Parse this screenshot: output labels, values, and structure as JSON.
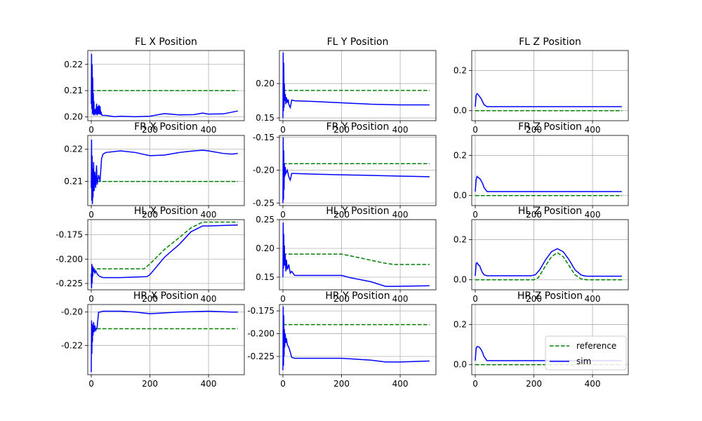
{
  "figure": {
    "background": "#ffffff"
  },
  "style": {
    "reference_color": "#008000",
    "sim_color": "#0000ff",
    "grid_color": "#b0b0b0"
  },
  "legend": {
    "placement": "lower-right",
    "panel": "HR Z Position",
    "entries": [
      "reference",
      "sim"
    ]
  },
  "chart_data": [
    {
      "type": "line",
      "title": "FL X Position",
      "xlim": [
        -12,
        522
      ],
      "ylim": [
        0.1985,
        0.2253
      ],
      "xticks": [
        "0",
        "200",
        "400"
      ],
      "yticks": [
        "0.20",
        "0.21",
        "0.22"
      ],
      "ytick_values": [
        0.2,
        0.21,
        0.22
      ],
      "grid": true,
      "series": [
        {
          "name": "reference",
          "style": "dashed",
          "x": [
            0,
            500
          ],
          "y": [
            0.21,
            0.21
          ]
        },
        {
          "name": "sim",
          "style": "solid",
          "x": [
            0,
            1,
            2,
            3,
            4,
            5,
            6,
            7,
            8,
            9,
            10,
            12,
            14,
            16,
            18,
            20,
            22,
            24,
            26,
            28,
            30,
            32,
            34,
            36,
            40,
            50,
            80,
            100,
            150,
            200,
            250,
            300,
            350,
            380,
            400,
            450,
            500
          ],
          "y": [
            0.205,
            0.224,
            0.203,
            0.22,
            0.201,
            0.215,
            0.2015,
            0.209,
            0.2005,
            0.206,
            0.2015,
            0.201,
            0.203,
            0.201,
            0.205,
            0.2005,
            0.204,
            0.201,
            0.2045,
            0.201,
            0.204,
            0.2008,
            0.2015,
            0.2006,
            0.2005,
            0.2005,
            0.2,
            0.2002,
            0.2,
            0.2002,
            0.2012,
            0.2007,
            0.2008,
            0.2014,
            0.201,
            0.2011,
            0.2022
          ]
        }
      ]
    },
    {
      "type": "line",
      "title": "FL Y Position",
      "xlim": [
        -12,
        522
      ],
      "ylim": [
        0.146,
        0.248
      ],
      "xticks": [
        "0",
        "200",
        "400"
      ],
      "yticks": [
        "0.15",
        "0.20"
      ],
      "ytick_values": [
        0.15,
        0.2
      ],
      "grid": true,
      "series": [
        {
          "name": "reference",
          "style": "dashed",
          "x": [
            0,
            500
          ],
          "y": [
            0.19,
            0.19
          ]
        },
        {
          "name": "sim",
          "style": "solid",
          "x": [
            0,
            1,
            2,
            3,
            4,
            5,
            6,
            8,
            10,
            12,
            15,
            18,
            20,
            25,
            30,
            40,
            100,
            200,
            300,
            400,
            500
          ],
          "y": [
            0.15,
            0.245,
            0.16,
            0.23,
            0.165,
            0.2,
            0.175,
            0.185,
            0.17,
            0.18,
            0.172,
            0.177,
            0.17,
            0.165,
            0.176,
            0.175,
            0.174,
            0.172,
            0.17,
            0.169,
            0.169
          ]
        }
      ]
    },
    {
      "type": "line",
      "title": "FL Z Position",
      "xlim": [
        -12,
        522
      ],
      "ylim": [
        -0.05,
        0.3
      ],
      "xticks": [
        "0",
        "200",
        "400"
      ],
      "yticks": [
        "0.0",
        "0.2"
      ],
      "ytick_values": [
        0.0,
        0.2
      ],
      "grid": true,
      "series": [
        {
          "name": "reference",
          "style": "dashed",
          "x": [
            0,
            500
          ],
          "y": [
            0.0,
            0.0
          ]
        },
        {
          "name": "sim",
          "style": "solid",
          "x": [
            0,
            3,
            6,
            10,
            15,
            20,
            25,
            30,
            40,
            100,
            200,
            300,
            400,
            500
          ],
          "y": [
            0.02,
            0.075,
            0.085,
            0.08,
            0.07,
            0.06,
            0.045,
            0.03,
            0.02,
            0.02,
            0.02,
            0.02,
            0.02,
            0.02
          ]
        }
      ]
    },
    {
      "type": "line",
      "title": "FR X Position",
      "xlim": [
        -12,
        522
      ],
      "ylim": [
        0.2025,
        0.2243
      ],
      "xticks": [
        "0",
        "200",
        "400"
      ],
      "yticks": [
        "0.21",
        "0.22"
      ],
      "ytick_values": [
        0.21,
        0.22
      ],
      "grid": true,
      "series": [
        {
          "name": "reference",
          "style": "dashed",
          "x": [
            0,
            500
          ],
          "y": [
            0.21,
            0.21
          ]
        },
        {
          "name": "sim",
          "style": "solid",
          "x": [
            0,
            1,
            2,
            3,
            4,
            5,
            6,
            8,
            10,
            12,
            15,
            18,
            20,
            25,
            30,
            35,
            40,
            50,
            100,
            150,
            200,
            250,
            300,
            350,
            380,
            400,
            450,
            480,
            500
          ],
          "y": [
            0.208,
            0.223,
            0.204,
            0.218,
            0.203,
            0.214,
            0.205,
            0.216,
            0.207,
            0.213,
            0.208,
            0.215,
            0.209,
            0.212,
            0.21,
            0.217,
            0.2185,
            0.219,
            0.2195,
            0.219,
            0.218,
            0.2182,
            0.219,
            0.2195,
            0.2197,
            0.2195,
            0.2187,
            0.2185,
            0.2187
          ]
        }
      ]
    },
    {
      "type": "line",
      "title": "FR Y Position",
      "xlim": [
        -12,
        522
      ],
      "ylim": [
        -0.254,
        -0.147
      ],
      "xticks": [
        "0",
        "200",
        "400"
      ],
      "yticks": [
        "-0.15",
        "-0.20",
        "-0.25"
      ],
      "ytick_values": [
        -0.15,
        -0.2,
        -0.25
      ],
      "grid": true,
      "series": [
        {
          "name": "reference",
          "style": "dashed",
          "x": [
            0,
            500
          ],
          "y": [
            -0.19,
            -0.19
          ]
        },
        {
          "name": "sim",
          "style": "solid",
          "x": [
            0,
            1,
            2,
            3,
            4,
            5,
            6,
            8,
            10,
            15,
            20,
            25,
            30,
            40,
            100,
            200,
            300,
            400,
            500
          ],
          "y": [
            -0.25,
            -0.15,
            -0.245,
            -0.17,
            -0.23,
            -0.19,
            -0.21,
            -0.195,
            -0.205,
            -0.2,
            -0.21,
            -0.215,
            -0.205,
            -0.205,
            -0.206,
            -0.207,
            -0.208,
            -0.209,
            -0.21
          ]
        }
      ]
    },
    {
      "type": "line",
      "title": "FR Z Position",
      "xlim": [
        -12,
        522
      ],
      "ylim": [
        -0.05,
        0.3
      ],
      "xticks": [
        "0",
        "200",
        "400"
      ],
      "yticks": [
        "0.0",
        "0.2"
      ],
      "ytick_values": [
        0.0,
        0.2
      ],
      "grid": true,
      "series": [
        {
          "name": "reference",
          "style": "dashed",
          "x": [
            0,
            500
          ],
          "y": [
            0.0,
            0.0
          ]
        },
        {
          "name": "sim",
          "style": "solid",
          "x": [
            0,
            3,
            6,
            10,
            15,
            20,
            25,
            30,
            40,
            100,
            200,
            300,
            400,
            500
          ],
          "y": [
            0.02,
            0.08,
            0.095,
            0.09,
            0.085,
            0.075,
            0.06,
            0.04,
            0.02,
            0.02,
            0.02,
            0.02,
            0.02,
            0.02
          ]
        }
      ]
    },
    {
      "type": "line",
      "title": "HL X Position",
      "xlim": [
        -12,
        522
      ],
      "ylim": [
        -0.2315,
        -0.1595
      ],
      "xticks": [
        "0",
        "200",
        "400"
      ],
      "yticks": [
        "-0.175",
        "-0.200",
        "-0.225"
      ],
      "ytick_values": [
        -0.175,
        -0.2,
        -0.225
      ],
      "grid": true,
      "series": [
        {
          "name": "reference",
          "style": "dashed",
          "x": [
            0,
            180,
            200,
            250,
            300,
            340,
            380,
            500
          ],
          "y": [
            -0.21,
            -0.21,
            -0.205,
            -0.19,
            -0.178,
            -0.168,
            -0.162,
            -0.162
          ]
        },
        {
          "name": "sim",
          "style": "solid",
          "x": [
            0,
            1,
            2,
            3,
            4,
            5,
            6,
            8,
            10,
            12,
            15,
            20,
            25,
            30,
            40,
            100,
            190,
            200,
            250,
            300,
            340,
            380,
            400,
            500
          ],
          "y": [
            -0.215,
            -0.23,
            -0.205,
            -0.225,
            -0.207,
            -0.218,
            -0.208,
            -0.213,
            -0.21,
            -0.215,
            -0.212,
            -0.215,
            -0.217,
            -0.218,
            -0.219,
            -0.219,
            -0.218,
            -0.216,
            -0.198,
            -0.185,
            -0.172,
            -0.166,
            -0.166,
            -0.165
          ]
        }
      ]
    },
    {
      "type": "line",
      "title": "HL Y Position",
      "xlim": [
        -12,
        522
      ],
      "ylim": [
        0.128,
        0.25
      ],
      "xticks": [
        "0",
        "200",
        "400"
      ],
      "yticks": [
        "0.15",
        "0.20",
        "0.25"
      ],
      "ytick_values": [
        0.15,
        0.2,
        0.25
      ],
      "grid": true,
      "series": [
        {
          "name": "reference",
          "style": "dashed",
          "x": [
            0,
            200,
            230,
            350,
            380,
            500
          ],
          "y": [
            0.19,
            0.19,
            0.187,
            0.174,
            0.172,
            0.172
          ]
        },
        {
          "name": "sim",
          "style": "solid",
          "x": [
            0,
            1,
            2,
            3,
            4,
            5,
            6,
            8,
            10,
            12,
            15,
            20,
            25,
            30,
            40,
            50,
            100,
            200,
            230,
            300,
            350,
            380,
            500
          ],
          "y": [
            0.15,
            0.245,
            0.165,
            0.225,
            0.175,
            0.205,
            0.17,
            0.19,
            0.16,
            0.18,
            0.163,
            0.172,
            0.157,
            0.16,
            0.153,
            0.153,
            0.153,
            0.153,
            0.149,
            0.142,
            0.134,
            0.134,
            0.135
          ]
        }
      ]
    },
    {
      "type": "line",
      "title": "HL Z Position",
      "xlim": [
        -12,
        522
      ],
      "ylim": [
        -0.05,
        0.3
      ],
      "xticks": [
        "0",
        "200",
        "400"
      ],
      "yticks": [
        "0.0",
        "0.2"
      ],
      "ytick_values": [
        0.0,
        0.2
      ],
      "grid": true,
      "series": [
        {
          "name": "reference",
          "style": "dashed",
          "x": [
            0,
            200,
            215,
            240,
            260,
            280,
            300,
            320,
            340,
            360,
            380,
            500
          ],
          "y": [
            0.0,
            0.0,
            0.01,
            0.07,
            0.115,
            0.135,
            0.115,
            0.07,
            0.025,
            0.005,
            0.0,
            0.0
          ]
        },
        {
          "name": "sim",
          "style": "solid",
          "x": [
            0,
            3,
            6,
            10,
            15,
            20,
            25,
            30,
            40,
            50,
            190,
            205,
            220,
            240,
            260,
            280,
            300,
            320,
            340,
            360,
            370,
            380,
            400,
            500
          ],
          "y": [
            0.02,
            0.08,
            0.085,
            0.075,
            0.07,
            0.05,
            0.035,
            0.025,
            0.02,
            0.02,
            0.02,
            0.025,
            0.05,
            0.1,
            0.14,
            0.155,
            0.14,
            0.1,
            0.05,
            0.025,
            0.02,
            0.018,
            0.018,
            0.018
          ]
        }
      ]
    },
    {
      "type": "line",
      "title": "HR X Position",
      "xlim": [
        -12,
        522
      ],
      "ylim": [
        -0.2375,
        -0.1955
      ],
      "xticks": [
        "0",
        "200",
        "400"
      ],
      "yticks": [
        "-0.20",
        "-0.22"
      ],
      "ytick_values": [
        -0.2,
        -0.22
      ],
      "grid": true,
      "series": [
        {
          "name": "reference",
          "style": "dashed",
          "x": [
            0,
            500
          ],
          "y": [
            -0.21,
            -0.21
          ]
        },
        {
          "name": "sim",
          "style": "solid",
          "x": [
            0,
            1,
            2,
            3,
            4,
            5,
            6,
            8,
            10,
            12,
            15,
            20,
            25,
            30,
            40,
            100,
            150,
            200,
            300,
            400,
            480,
            500
          ],
          "y": [
            -0.236,
            -0.205,
            -0.225,
            -0.207,
            -0.218,
            -0.208,
            -0.214,
            -0.206,
            -0.212,
            -0.208,
            -0.211,
            -0.209,
            -0.2,
            -0.2,
            -0.1995,
            -0.1995,
            -0.2,
            -0.201,
            -0.2,
            -0.1995,
            -0.2,
            -0.2
          ]
        }
      ]
    },
    {
      "type": "line",
      "title": "HR Y Position",
      "xlim": [
        -12,
        522
      ],
      "ylim": [
        -0.245,
        -0.168
      ],
      "xticks": [
        "0",
        "200",
        "400"
      ],
      "yticks": [
        "-0.175",
        "-0.200",
        "-0.225"
      ],
      "ytick_values": [
        -0.175,
        -0.2,
        -0.225
      ],
      "grid": true,
      "series": [
        {
          "name": "reference",
          "style": "dashed",
          "x": [
            0,
            500
          ],
          "y": [
            -0.19,
            -0.19
          ]
        },
        {
          "name": "sim",
          "style": "solid",
          "x": [
            0,
            1,
            2,
            3,
            4,
            5,
            6,
            8,
            10,
            12,
            15,
            20,
            25,
            30,
            40,
            100,
            200,
            300,
            350,
            400,
            500
          ],
          "y": [
            -0.24,
            -0.17,
            -0.235,
            -0.18,
            -0.225,
            -0.195,
            -0.215,
            -0.2,
            -0.21,
            -0.205,
            -0.212,
            -0.215,
            -0.22,
            -0.226,
            -0.227,
            -0.227,
            -0.227,
            -0.229,
            -0.231,
            -0.231,
            -0.23
          ]
        }
      ]
    },
    {
      "type": "line",
      "title": "HR Z Position",
      "xlim": [
        -12,
        522
      ],
      "ylim": [
        -0.05,
        0.3
      ],
      "xticks": [
        "0",
        "200",
        "400"
      ],
      "yticks": [
        "0.0",
        "0.2"
      ],
      "ytick_values": [
        0.0,
        0.2
      ],
      "grid": true,
      "series": [
        {
          "name": "reference",
          "style": "dashed",
          "x": [
            0,
            500
          ],
          "y": [
            0.0,
            0.0
          ]
        },
        {
          "name": "sim",
          "style": "solid",
          "x": [
            0,
            3,
            6,
            10,
            15,
            20,
            25,
            30,
            40,
            100,
            200,
            300,
            400,
            500
          ],
          "y": [
            0.02,
            0.08,
            0.09,
            0.09,
            0.085,
            0.075,
            0.06,
            0.04,
            0.02,
            0.02,
            0.02,
            0.02,
            0.02,
            0.02
          ]
        }
      ]
    }
  ]
}
